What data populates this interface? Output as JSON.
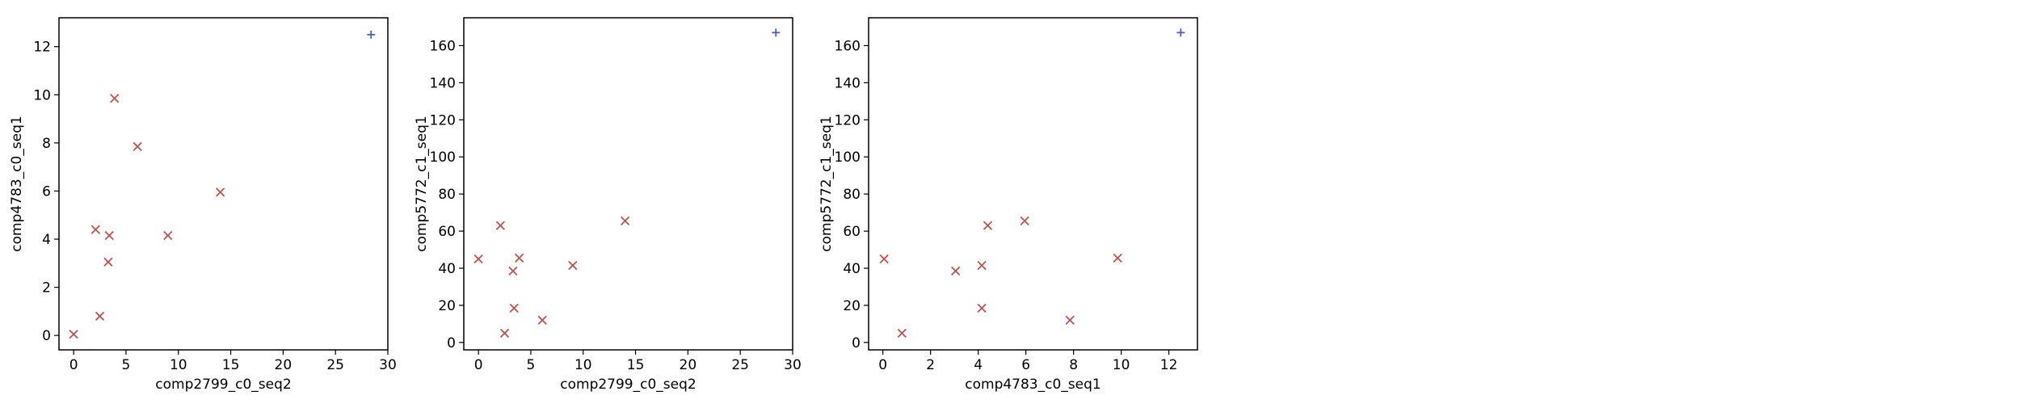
{
  "chart_data": [
    {
      "type": "scatter",
      "xlabel": "comp2799_c0_seq2",
      "ylabel": "comp4783_c0_seq1",
      "xlim": [
        -1.4,
        30
      ],
      "ylim": [
        -0.6,
        13.2
      ],
      "xticks": [
        0,
        5,
        10,
        15,
        20,
        25,
        30
      ],
      "yticks": [
        0,
        2,
        4,
        6,
        8,
        10,
        12
      ],
      "grid": false,
      "series": [
        {
          "marker": "x",
          "color": "#c0504d",
          "x": [
            0,
            2.1,
            2.5,
            3.3,
            3.4,
            3.9,
            6.1,
            9.0,
            14.0
          ],
          "y": [
            0.05,
            4.4,
            0.8,
            3.05,
            4.15,
            9.85,
            7.85,
            4.15,
            5.95
          ]
        },
        {
          "marker": "+",
          "color": "#4a5fc1",
          "x": [
            28.4
          ],
          "y": [
            12.5
          ]
        }
      ]
    },
    {
      "type": "scatter",
      "xlabel": "comp2799_c0_seq2",
      "ylabel": "comp5772_c1_seq1",
      "xlim": [
        -1.4,
        30
      ],
      "ylim": [
        -4,
        175
      ],
      "xticks": [
        0,
        5,
        10,
        15,
        20,
        25,
        30
      ],
      "yticks": [
        0,
        20,
        40,
        60,
        80,
        100,
        120,
        140,
        160
      ],
      "grid": false,
      "series": [
        {
          "marker": "x",
          "color": "#c0504d",
          "x": [
            0,
            2.1,
            2.5,
            3.3,
            3.4,
            3.9,
            6.1,
            9.0,
            14.0
          ],
          "y": [
            45,
            63,
            5,
            38.5,
            18.5,
            45.5,
            12,
            41.5,
            65.5
          ]
        },
        {
          "marker": "+",
          "color": "#4a5fc1",
          "x": [
            28.4
          ],
          "y": [
            167
          ]
        }
      ]
    },
    {
      "type": "scatter",
      "xlabel": "comp4783_c0_seq1",
      "ylabel": "comp5772_c1_seq1",
      "xlim": [
        -0.6,
        13.2
      ],
      "ylim": [
        -4,
        175
      ],
      "xticks": [
        0,
        2,
        4,
        6,
        8,
        10,
        12
      ],
      "yticks": [
        0,
        20,
        40,
        60,
        80,
        100,
        120,
        140,
        160
      ],
      "grid": false,
      "series": [
        {
          "marker": "x",
          "color": "#c0504d",
          "x": [
            0.05,
            0.8,
            3.05,
            4.15,
            4.15,
            4.4,
            5.95,
            7.85,
            9.85
          ],
          "y": [
            45,
            5,
            38.5,
            41.5,
            18.5,
            63,
            65.5,
            12,
            45.5
          ]
        },
        {
          "marker": "+",
          "color": "#4a5fc1",
          "x": [
            12.5
          ],
          "y": [
            167
          ]
        }
      ]
    }
  ]
}
